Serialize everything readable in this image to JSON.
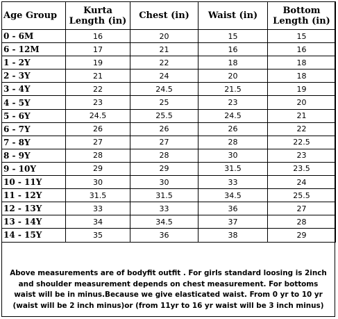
{
  "table": {
    "headers": [
      {
        "line1": "Age Group",
        "line2": ""
      },
      {
        "line1": "Kurta",
        "line2": "Length (in)"
      },
      {
        "line1": "Chest (in)",
        "line2": ""
      },
      {
        "line1": "Waist (in)",
        "line2": ""
      },
      {
        "line1": "Bottom",
        "line2": "Length (in)"
      }
    ],
    "rows": [
      [
        "0 - 6M",
        "16",
        "20",
        "15",
        "15"
      ],
      [
        "6 - 12M",
        "17",
        "21",
        "16",
        "16"
      ],
      [
        "1 - 2Y",
        "19",
        "22",
        "18",
        "18"
      ],
      [
        "2 - 3Y",
        "21",
        "24",
        "20",
        "18"
      ],
      [
        "3 - 4Y",
        "22",
        "24.5",
        "21.5",
        "19"
      ],
      [
        "4 - 5Y",
        "23",
        "25",
        "23",
        "20"
      ],
      [
        "5 - 6Y",
        "24.5",
        "25.5",
        "24.5",
        "21"
      ],
      [
        "6 - 7Y",
        "26",
        "26",
        "26",
        "22"
      ],
      [
        "7 - 8Y",
        "27",
        "27",
        "28",
        "22.5"
      ],
      [
        "8 - 9Y",
        "28",
        "28",
        "30",
        "23"
      ],
      [
        "9 - 10Y",
        "29",
        "29",
        "31.5",
        "23.5"
      ],
      [
        "10 - 11Y",
        "30",
        "30",
        "33",
        "24"
      ],
      [
        "11 - 12Y",
        "31.5",
        "31.5",
        "34.5",
        "25.5"
      ],
      [
        "12 - 13Y",
        "33",
        "33",
        "36",
        "27"
      ],
      [
        "13 - 14Y",
        "34",
        "34.5",
        "37",
        "28"
      ],
      [
        "14 - 15Y",
        "35",
        "36",
        "38",
        "29"
      ]
    ]
  },
  "note": "Above measurements are of bodyfit outfit . For girls standard loosing is 2inch and shoulder measurement depends on chest measurement. For bottoms waist will be in minus.Because we give elasticated waist. From 0 yr to 10 yr (waist will be 2 inch minus)or (from 11yr to 16 yr waist will be 3 inch minus)"
}
